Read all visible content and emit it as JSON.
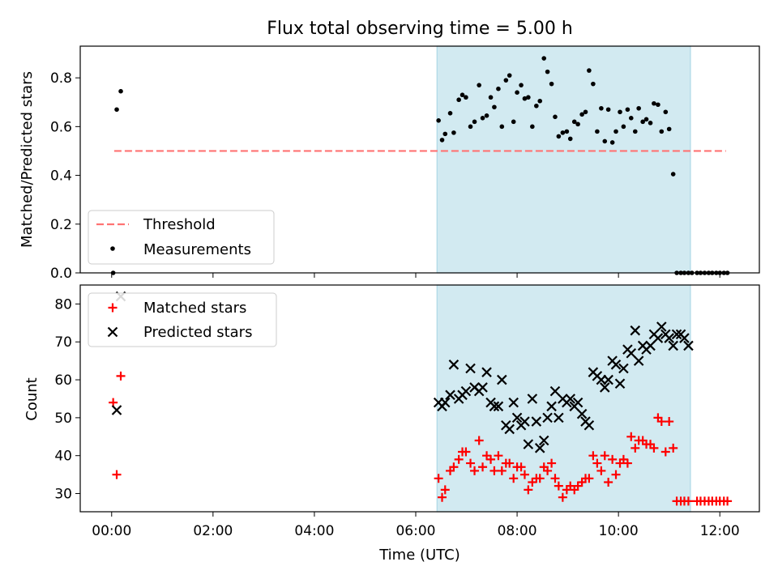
{
  "chart_data": {
    "type": "scatter",
    "title": "Flux total observing time = 5.00 h",
    "xlabel": "Time (UTC)",
    "x_ticks": [
      {
        "value": 0,
        "label": "00:00"
      },
      {
        "value": 2,
        "label": "02:00"
      },
      {
        "value": 4,
        "label": "04:00"
      },
      {
        "value": 6,
        "label": "06:00"
      },
      {
        "value": 8,
        "label": "08:00"
      },
      {
        "value": 10,
        "label": "10:00"
      },
      {
        "value": 12,
        "label": "12:00"
      }
    ],
    "xlim": [
      -0.62,
      12.78
    ],
    "shaded_interval": [
      6.42,
      11.42
    ],
    "shade_color": "#add8e6",
    "panels": [
      {
        "ylabel": "Matched/Predicted stars",
        "ylim": [
          0,
          0.93
        ],
        "y_ticks": [
          0.0,
          0.2,
          0.4,
          0.6,
          0.8
        ],
        "y_tick_labels": [
          "0.0",
          "0.2",
          "0.4",
          "0.6",
          "0.8"
        ],
        "legend": {
          "placement": "lower-left",
          "entries": [
            "Threshold",
            "Measurements"
          ]
        },
        "threshold": {
          "name": "Threshold",
          "value": 0.5,
          "x_range": [
            0.05,
            12.12
          ],
          "color": "#ff7373"
        },
        "measurements": {
          "name": "Measurements",
          "color": "#000000",
          "x": [
            0.03,
            0.1,
            0.18,
            6.45,
            6.52,
            6.58,
            6.68,
            6.75,
            6.85,
            6.92,
            6.99,
            7.08,
            7.16,
            7.25,
            7.32,
            7.4,
            7.48,
            7.55,
            7.63,
            7.7,
            7.78,
            7.85,
            7.93,
            8.0,
            8.08,
            8.15,
            8.22,
            8.3,
            8.38,
            8.45,
            8.53,
            8.6,
            8.68,
            8.75,
            8.82,
            8.9,
            8.98,
            9.05,
            9.13,
            9.2,
            9.28,
            9.35,
            9.42,
            9.5,
            9.58,
            9.66,
            9.73,
            9.8,
            9.88,
            9.95,
            10.03,
            10.1,
            10.18,
            10.25,
            10.33,
            10.4,
            10.48,
            10.55,
            10.63,
            10.7,
            10.78,
            10.85,
            10.93,
            11.0,
            11.08,
            11.15,
            11.23,
            11.3,
            11.38,
            11.45,
            11.55,
            11.62,
            11.7,
            11.78,
            11.85,
            11.93,
            12.0,
            12.08,
            12.15
          ],
          "y": [
            0.0,
            0.67,
            0.745,
            0.625,
            0.545,
            0.57,
            0.655,
            0.575,
            0.71,
            0.73,
            0.72,
            0.6,
            0.62,
            0.77,
            0.635,
            0.645,
            0.72,
            0.68,
            0.755,
            0.6,
            0.79,
            0.81,
            0.62,
            0.74,
            0.77,
            0.715,
            0.72,
            0.6,
            0.685,
            0.705,
            0.88,
            0.825,
            0.775,
            0.64,
            0.56,
            0.575,
            0.58,
            0.55,
            0.62,
            0.61,
            0.65,
            0.66,
            0.83,
            0.775,
            0.58,
            0.675,
            0.54,
            0.67,
            0.535,
            0.58,
            0.66,
            0.6,
            0.67,
            0.635,
            0.58,
            0.675,
            0.62,
            0.63,
            0.615,
            0.695,
            0.69,
            0.58,
            0.66,
            0.59,
            0.405,
            0.0,
            0.0,
            0.0,
            0.0,
            0.0,
            0.0,
            0.0,
            0.0,
            0.0,
            0.0,
            0.0,
            0.0,
            0.0,
            0.0
          ]
        }
      },
      {
        "ylabel": "Count",
        "ylim": [
          25.2,
          85
        ],
        "y_ticks": [
          30,
          40,
          50,
          60,
          70,
          80
        ],
        "y_tick_labels": [
          "30",
          "40",
          "50",
          "60",
          "70",
          "80"
        ],
        "legend": {
          "placement": "upper-left",
          "entries": [
            "Matched stars",
            "Predicted stars"
          ]
        },
        "series": [
          {
            "name": "Matched stars",
            "marker": "+",
            "color": "#ff0000",
            "x": [
              0.03,
              0.1,
              0.18,
              6.45,
              6.52,
              6.58,
              6.68,
              6.75,
              6.85,
              6.92,
              6.99,
              7.08,
              7.16,
              7.25,
              7.32,
              7.4,
              7.48,
              7.55,
              7.63,
              7.7,
              7.78,
              7.85,
              7.93,
              8.0,
              8.08,
              8.15,
              8.22,
              8.3,
              8.38,
              8.45,
              8.53,
              8.6,
              8.68,
              8.75,
              8.82,
              8.9,
              8.98,
              9.05,
              9.13,
              9.2,
              9.28,
              9.35,
              9.42,
              9.5,
              9.58,
              9.66,
              9.73,
              9.8,
              9.88,
              9.95,
              10.03,
              10.1,
              10.18,
              10.25,
              10.33,
              10.4,
              10.48,
              10.55,
              10.63,
              10.7,
              10.78,
              10.85,
              10.93,
              11.0,
              11.08,
              11.15,
              11.23,
              11.3,
              11.38,
              11.55,
              11.62,
              11.7,
              11.78,
              11.85,
              11.93,
              12.0,
              12.08,
              12.15
            ],
            "y": [
              54,
              35,
              61,
              34,
              29,
              31,
              36,
              37,
              39,
              41,
              41,
              38,
              36,
              44,
              37,
              40,
              39,
              36,
              40,
              36,
              38,
              38,
              34,
              37,
              37,
              35,
              31,
              33,
              34,
              34,
              37,
              36,
              38,
              34,
              32,
              29,
              31,
              32,
              31,
              32,
              33,
              34,
              34,
              40,
              38,
              36,
              40,
              33,
              39,
              35,
              38,
              39,
              38,
              45,
              42,
              44,
              44,
              43,
              43,
              42,
              50,
              49,
              41,
              49,
              42,
              28,
              28,
              28,
              28,
              28,
              28,
              28,
              28,
              28,
              28,
              28,
              28,
              28
            ]
          },
          {
            "name": "Predicted stars",
            "marker": "x",
            "color": "#000000",
            "x": [
              0.1,
              0.18,
              6.45,
              6.52,
              6.58,
              6.68,
              6.75,
              6.85,
              6.92,
              6.99,
              7.08,
              7.16,
              7.25,
              7.32,
              7.4,
              7.48,
              7.55,
              7.63,
              7.7,
              7.78,
              7.85,
              7.93,
              8.0,
              8.08,
              8.15,
              8.22,
              8.3,
              8.38,
              8.45,
              8.53,
              8.6,
              8.68,
              8.75,
              8.82,
              8.9,
              8.98,
              9.05,
              9.13,
              9.2,
              9.28,
              9.35,
              9.42,
              9.5,
              9.58,
              9.66,
              9.73,
              9.8,
              9.88,
              9.95,
              10.03,
              10.1,
              10.18,
              10.25,
              10.33,
              10.4,
              10.48,
              10.55,
              10.63,
              10.7,
              10.78,
              10.85,
              10.93,
              11.0,
              11.08,
              11.15,
              11.23,
              11.3,
              11.38
            ],
            "y": [
              52,
              82,
              54,
              53,
              54,
              56,
              64,
              55,
              56,
              57,
              63,
              58,
              57,
              58,
              62,
              54,
              53,
              53,
              60,
              48,
              47,
              54,
              50,
              48,
              49,
              43,
              55,
              49,
              42,
              44,
              50,
              53,
              57,
              50,
              55,
              54,
              55,
              53,
              54,
              51,
              49,
              48,
              62,
              61,
              60,
              58,
              60,
              65,
              64,
              59,
              63,
              68,
              67,
              73,
              65,
              69,
              68,
              69,
              72,
              71,
              74,
              72,
              71,
              69,
              72,
              72,
              71,
              69
            ]
          }
        ]
      }
    ]
  }
}
